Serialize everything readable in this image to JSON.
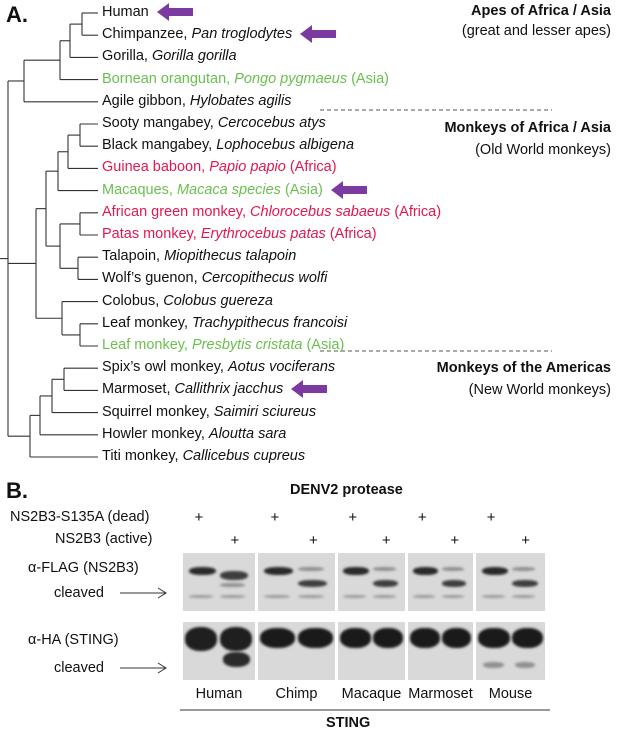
{
  "panel_a": {
    "label": "A.",
    "groups": [
      {
        "title": "Apes of Africa / Asia",
        "subtitle": "(great and lesser apes)"
      },
      {
        "title": "Monkeys of Africa / Asia",
        "subtitle": "(Old World monkeys)"
      },
      {
        "title": "Monkeys of the Americas",
        "subtitle": "(New World monkeys)"
      }
    ],
    "taxa": [
      {
        "common": "Human",
        "latin": "",
        "region": "",
        "color": "#111111",
        "arrow": true
      },
      {
        "common": "Chimpanzee, ",
        "latin": "Pan troglodytes",
        "region": "",
        "color": "#111111",
        "arrow": true
      },
      {
        "common": "Gorilla, ",
        "latin": "Gorilla gorilla",
        "region": "",
        "color": "#111111",
        "arrow": false
      },
      {
        "common": "Bornean orangutan, ",
        "latin": "Pongo pygmaeus",
        "region": " (Asia)",
        "color": "#6ac04f",
        "arrow": false
      },
      {
        "common": "Agile gibbon, ",
        "latin": "Hylobates agilis",
        "region": "",
        "color": "#111111",
        "arrow": false
      },
      {
        "common": "Sooty mangabey, ",
        "latin": "Cercocebus atys",
        "region": "",
        "color": "#111111",
        "arrow": false
      },
      {
        "common": "Black mangabey, ",
        "latin": "Lophocebus albigena",
        "region": "",
        "color": "#111111",
        "arrow": false
      },
      {
        "common": "Guinea baboon, ",
        "latin": "Papio papio",
        "region": "  (Africa)",
        "color": "#e0184e",
        "arrow": false
      },
      {
        "common": "Macaques, ",
        "latin": "Macaca species",
        "region": " (Asia)",
        "color": "#6ac04f",
        "arrow": true
      },
      {
        "common": "African green monkey, ",
        "latin": "Chlorocebus sabaeus",
        "region": "  (Africa)",
        "color": "#e0184e",
        "arrow": false
      },
      {
        "common": "Patas monkey, ",
        "latin": "Erythrocebus patas",
        "region": "  (Africa)",
        "color": "#e0184e",
        "arrow": false
      },
      {
        "common": "Talapoin, ",
        "latin": "Miopithecus talapoin",
        "region": "",
        "color": "#111111",
        "arrow": false
      },
      {
        "common": "Wolf’s guenon, ",
        "latin": "Cercopithecus wolfi",
        "region": "",
        "color": "#111111",
        "arrow": false
      },
      {
        "common": "Colobus, ",
        "latin": "Colobus guereza",
        "region": "",
        "color": "#111111",
        "arrow": false
      },
      {
        "common": "Leaf monkey, ",
        "latin": "Trachypithecus francoisi",
        "region": "",
        "color": "#111111",
        "arrow": false
      },
      {
        "common": "Leaf monkey, ",
        "latin": "Presbytis cristata",
        "region": " (Asia)",
        "color": "#6ac04f",
        "arrow": false
      },
      {
        "common": "Spix’s owl monkey, ",
        "latin": "Aotus vociferans",
        "region": "",
        "color": "#111111",
        "arrow": false
      },
      {
        "common": "Marmoset, ",
        "latin": "Callithrix jacchus",
        "region": "",
        "color": "#111111",
        "arrow": true
      },
      {
        "common": "Squirrel monkey, ",
        "latin": "Saimiri sciureus",
        "region": "",
        "color": "#111111",
        "arrow": false
      },
      {
        "common": "Howler monkey, ",
        "latin": "Aloutta sara",
        "region": "",
        "color": "#111111",
        "arrow": false
      },
      {
        "common": "Titi monkey, ",
        "latin": "Callicebus cupreus",
        "region": "",
        "color": "#111111",
        "arrow": false
      }
    ],
    "arrow_color": "#7a3aa0"
  },
  "panel_b": {
    "label": "B.",
    "header": "DENV2 protease",
    "rows": [
      {
        "label": "NS2B3-S135A (dead)",
        "mark": "+"
      },
      {
        "label": "NS2B3 (active)",
        "mark": "+"
      }
    ],
    "blot_labels": {
      "flag": "α-FLAG (NS2B3)",
      "flag_cleaved": "cleaved",
      "ha": "α-HA (STING)",
      "ha_cleaved": "cleaved"
    },
    "lanes": [
      "Human",
      "Chimp",
      "Macaque",
      "Marmoset",
      "Mouse"
    ],
    "footer": "STING"
  }
}
